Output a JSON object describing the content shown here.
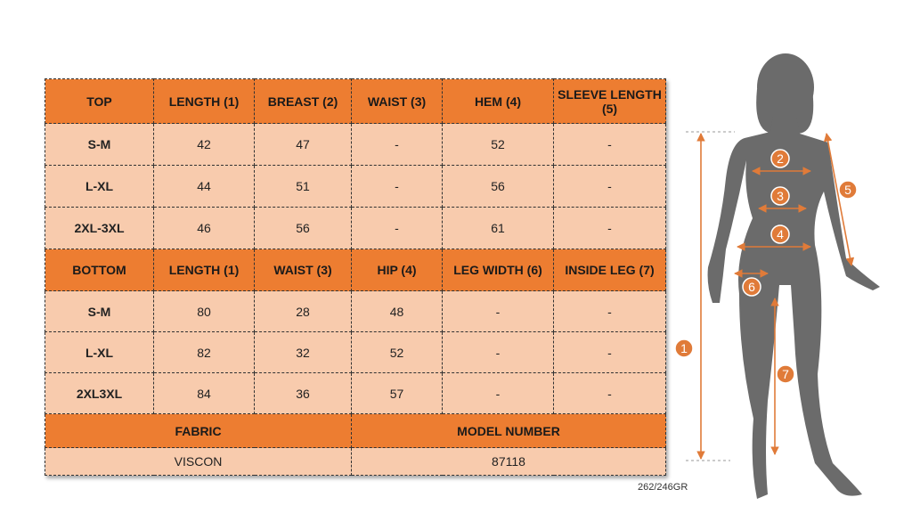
{
  "table": {
    "top_header": [
      "TOP",
      "LENGTH (1)",
      "BREAST (2)",
      "WAIST (3)",
      "HEM (4)",
      "SLEEVE LENGTH (5)"
    ],
    "top_rows": [
      [
        "S-M",
        "42",
        "47",
        "-",
        "52",
        "-"
      ],
      [
        "L-XL",
        "44",
        "51",
        "-",
        "56",
        "-"
      ],
      [
        "2XL-3XL",
        "46",
        "56",
        "-",
        "61",
        "-"
      ]
    ],
    "bottom_header": [
      "BOTTOM",
      "LENGTH (1)",
      "WAIST (3)",
      "HIP (4)",
      "LEG WIDTH (6)",
      "INSIDE LEG (7)"
    ],
    "bottom_rows": [
      [
        "S-M",
        "80",
        "28",
        "48",
        "-",
        "-"
      ],
      [
        "L-XL",
        "82",
        "32",
        "52",
        "-",
        "-"
      ],
      [
        "2XL3XL",
        "84",
        "36",
        "57",
        "-",
        "-"
      ]
    ],
    "info_header": [
      "FABRIC",
      "MODEL NUMBER"
    ],
    "info_values": [
      "VISCON",
      "87118"
    ]
  },
  "figure": {
    "markers": [
      "1",
      "2",
      "3",
      "4",
      "5",
      "6",
      "7"
    ]
  },
  "footer": {
    "code": "262/246GR"
  }
}
